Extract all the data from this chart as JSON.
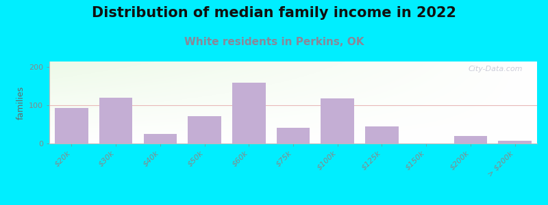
{
  "title": "Distribution of median family income in 2022",
  "subtitle": "White residents in Perkins, OK",
  "ylabel": "families",
  "categories": [
    "$20k",
    "$30k",
    "$40k",
    "$50k",
    "$60k",
    "$75k",
    "$100k",
    "$125k",
    "$150k",
    "$200k",
    "> $200k"
  ],
  "values": [
    93,
    120,
    25,
    72,
    160,
    42,
    118,
    45,
    0,
    20,
    8
  ],
  "bar_color": "#c4aed4",
  "background_outer": "#00eeff",
  "bg_top_left": "#e8f5e2",
  "bg_top_right": "#f5faf5",
  "bg_bottom": "#ffffff",
  "title_fontsize": 15,
  "subtitle_fontsize": 11,
  "ylabel_fontsize": 9,
  "tick_fontsize": 8,
  "ylim": [
    0,
    215
  ],
  "yticks": [
    0,
    100,
    200
  ],
  "watermark": "City-Data.com",
  "subtitle_color": "#888899",
  "hline_color": "#e8b8b8",
  "hline_y": 100
}
